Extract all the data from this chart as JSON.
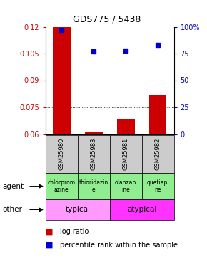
{
  "title": "GDS775 / 5438",
  "samples": [
    "GSM25980",
    "GSM25983",
    "GSM25981",
    "GSM25982"
  ],
  "log_ratio": [
    0.12,
    0.0612,
    0.068,
    0.082
  ],
  "percentile": [
    97,
    77,
    78,
    83
  ],
  "ylim_left": [
    0.06,
    0.12
  ],
  "ylim_right": [
    0,
    100
  ],
  "yticks_left": [
    0.06,
    0.075,
    0.09,
    0.105,
    0.12
  ],
  "yticks_right": [
    0,
    25,
    50,
    75,
    100
  ],
  "agent_labels": [
    "chlorprom\nazine",
    "thioridazin\ne",
    "olanzap\nine",
    "quetiapi\nne"
  ],
  "agent_color": "#90EE90",
  "typical_color": "#FF99FF",
  "atypical_color": "#FF33FF",
  "bar_color": "#CC0000",
  "dot_color": "#0000CC",
  "left_axis_color": "#CC0000",
  "right_axis_color": "#0000CC",
  "sample_box_color": "#CCCCCC",
  "grid_color": "#000000"
}
